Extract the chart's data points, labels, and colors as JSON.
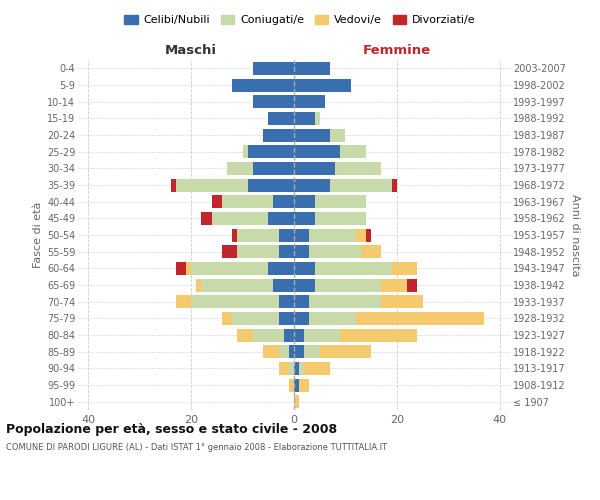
{
  "age_groups": [
    "100+",
    "95-99",
    "90-94",
    "85-89",
    "80-84",
    "75-79",
    "70-74",
    "65-69",
    "60-64",
    "55-59",
    "50-54",
    "45-49",
    "40-44",
    "35-39",
    "30-34",
    "25-29",
    "20-24",
    "15-19",
    "10-14",
    "5-9",
    "0-4"
  ],
  "birth_years": [
    "≤ 1907",
    "1908-1912",
    "1913-1917",
    "1918-1922",
    "1923-1927",
    "1928-1932",
    "1933-1937",
    "1938-1942",
    "1943-1947",
    "1948-1952",
    "1953-1957",
    "1958-1962",
    "1963-1967",
    "1968-1972",
    "1973-1977",
    "1978-1982",
    "1983-1987",
    "1988-1992",
    "1993-1997",
    "1998-2002",
    "2003-2007"
  ],
  "colors": {
    "celibi": "#3a6faf",
    "coniugati": "#c8d9aa",
    "vedovi": "#f5c96e",
    "divorziati": "#c0262b"
  },
  "males": {
    "celibi": [
      0,
      0,
      0,
      1,
      2,
      3,
      3,
      4,
      5,
      3,
      3,
      5,
      4,
      9,
      8,
      9,
      6,
      5,
      8,
      12,
      8
    ],
    "coniugati": [
      0,
      0,
      1,
      2,
      6,
      9,
      17,
      14,
      15,
      8,
      8,
      11,
      10,
      14,
      5,
      1,
      0,
      0,
      0,
      0,
      0
    ],
    "vedovi": [
      0,
      1,
      2,
      3,
      3,
      2,
      3,
      1,
      1,
      0,
      0,
      0,
      0,
      0,
      0,
      0,
      0,
      0,
      0,
      0,
      0
    ],
    "divorziati": [
      0,
      0,
      0,
      0,
      0,
      0,
      0,
      0,
      2,
      3,
      1,
      2,
      2,
      1,
      0,
      0,
      0,
      0,
      0,
      0,
      0
    ]
  },
  "females": {
    "celibi": [
      0,
      1,
      1,
      2,
      2,
      3,
      3,
      4,
      4,
      3,
      3,
      4,
      4,
      7,
      8,
      9,
      7,
      4,
      6,
      11,
      7
    ],
    "coniugati": [
      0,
      0,
      1,
      3,
      7,
      9,
      14,
      13,
      15,
      10,
      9,
      10,
      10,
      12,
      9,
      5,
      3,
      1,
      0,
      0,
      0
    ],
    "vedovi": [
      1,
      2,
      5,
      10,
      15,
      25,
      8,
      5,
      5,
      4,
      2,
      0,
      0,
      0,
      0,
      0,
      0,
      0,
      0,
      0,
      0
    ],
    "divorziati": [
      0,
      0,
      0,
      0,
      0,
      0,
      0,
      2,
      0,
      0,
      1,
      0,
      0,
      1,
      0,
      0,
      0,
      0,
      0,
      0,
      0
    ]
  },
  "xlim": 42,
  "xticks": [
    -40,
    -20,
    0,
    20,
    40
  ],
  "xticklabels": [
    "40",
    "20",
    "0",
    "20",
    "40"
  ],
  "title": "Popolazione per età, sesso e stato civile - 2008",
  "subtitle": "COMUNE DI PARODI LIGURE (AL) - Dati ISTAT 1° gennaio 2008 - Elaborazione TUTTITALIA.IT",
  "ylabel_left": "Fasce di età",
  "ylabel_right": "Anni di nascita",
  "label_maschi": "Maschi",
  "label_femmine": "Femmine",
  "legend_labels": [
    "Celibi/Nubili",
    "Coniugati/e",
    "Vedovi/e",
    "Divorziati/e"
  ],
  "bg_color": "#ffffff",
  "grid_color": "#cccccc"
}
